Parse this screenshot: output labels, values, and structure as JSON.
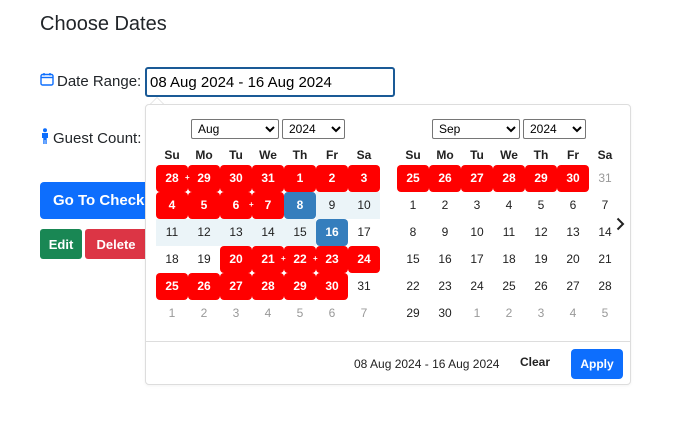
{
  "page": {
    "title": "Choose Dates"
  },
  "form": {
    "date_range_label": "Date Range:",
    "date_range_value": "08 Aug 2024 - 16 Aug 2024",
    "guest_count_label": "Guest Count:"
  },
  "buttons": {
    "checkout": "Go To Checko",
    "edit": "Edit",
    "delete": "Delete"
  },
  "icons": {
    "calendar": "calendar-icon",
    "person": "person-icon",
    "next": "chevron-right-icon"
  },
  "colors": {
    "booked": "#ff0000",
    "active": "#357ebd",
    "in_range": "#ebf4f8",
    "primary": "#0d6efd",
    "success": "#198754",
    "danger": "#dc3545"
  },
  "weekdays": [
    "Su",
    "Mo",
    "Tu",
    "We",
    "Th",
    "Fr",
    "Sa"
  ],
  "calendars": [
    {
      "month": "Aug",
      "year": "2024",
      "weeks": [
        [
          {
            "d": "28",
            "s": "booked"
          },
          {
            "d": "29",
            "s": "booked",
            "p": true
          },
          {
            "d": "30",
            "s": "booked"
          },
          {
            "d": "31",
            "s": "booked"
          },
          {
            "d": "1",
            "s": "booked"
          },
          {
            "d": "2",
            "s": "booked"
          },
          {
            "d": "3",
            "s": "booked"
          }
        ],
        [
          {
            "d": "4",
            "s": "booked"
          },
          {
            "d": "5",
            "s": "booked"
          },
          {
            "d": "6",
            "s": "booked"
          },
          {
            "d": "7",
            "s": "booked",
            "p": true
          },
          {
            "d": "8",
            "s": "active"
          },
          {
            "d": "9",
            "s": "inrange"
          },
          {
            "d": "10",
            "s": "inrange"
          }
        ],
        [
          {
            "d": "11",
            "s": "inrange"
          },
          {
            "d": "12",
            "s": "inrange"
          },
          {
            "d": "13",
            "s": "inrange"
          },
          {
            "d": "14",
            "s": "inrange"
          },
          {
            "d": "15",
            "s": "inrange"
          },
          {
            "d": "16",
            "s": "active"
          },
          {
            "d": "17",
            "s": ""
          }
        ],
        [
          {
            "d": "18",
            "s": ""
          },
          {
            "d": "19",
            "s": ""
          },
          {
            "d": "20",
            "s": "booked"
          },
          {
            "d": "21",
            "s": "booked"
          },
          {
            "d": "22",
            "s": "booked",
            "p": true
          },
          {
            "d": "23",
            "s": "booked",
            "p": true
          },
          {
            "d": "24",
            "s": "booked"
          }
        ],
        [
          {
            "d": "25",
            "s": "booked"
          },
          {
            "d": "26",
            "s": "booked"
          },
          {
            "d": "27",
            "s": "booked"
          },
          {
            "d": "28",
            "s": "booked"
          },
          {
            "d": "29",
            "s": "booked"
          },
          {
            "d": "30",
            "s": "booked"
          },
          {
            "d": "31",
            "s": ""
          }
        ],
        [
          {
            "d": "1",
            "s": "off"
          },
          {
            "d": "2",
            "s": "off"
          },
          {
            "d": "3",
            "s": "off"
          },
          {
            "d": "4",
            "s": "off"
          },
          {
            "d": "5",
            "s": "off"
          },
          {
            "d": "6",
            "s": "off"
          },
          {
            "d": "7",
            "s": "off"
          }
        ]
      ]
    },
    {
      "month": "Sep",
      "year": "2024",
      "weeks": [
        [
          {
            "d": "25",
            "s": "booked"
          },
          {
            "d": "26",
            "s": "booked"
          },
          {
            "d": "27",
            "s": "booked"
          },
          {
            "d": "28",
            "s": "booked"
          },
          {
            "d": "29",
            "s": "booked"
          },
          {
            "d": "30",
            "s": "booked"
          },
          {
            "d": "31",
            "s": "off"
          }
        ],
        [
          {
            "d": "1",
            "s": ""
          },
          {
            "d": "2",
            "s": ""
          },
          {
            "d": "3",
            "s": ""
          },
          {
            "d": "4",
            "s": ""
          },
          {
            "d": "5",
            "s": ""
          },
          {
            "d": "6",
            "s": ""
          },
          {
            "d": "7",
            "s": ""
          }
        ],
        [
          {
            "d": "8",
            "s": ""
          },
          {
            "d": "9",
            "s": ""
          },
          {
            "d": "10",
            "s": ""
          },
          {
            "d": "11",
            "s": ""
          },
          {
            "d": "12",
            "s": ""
          },
          {
            "d": "13",
            "s": ""
          },
          {
            "d": "14",
            "s": ""
          }
        ],
        [
          {
            "d": "15",
            "s": ""
          },
          {
            "d": "16",
            "s": ""
          },
          {
            "d": "17",
            "s": ""
          },
          {
            "d": "18",
            "s": ""
          },
          {
            "d": "19",
            "s": ""
          },
          {
            "d": "20",
            "s": ""
          },
          {
            "d": "21",
            "s": ""
          }
        ],
        [
          {
            "d": "22",
            "s": ""
          },
          {
            "d": "23",
            "s": ""
          },
          {
            "d": "24",
            "s": ""
          },
          {
            "d": "25",
            "s": ""
          },
          {
            "d": "26",
            "s": ""
          },
          {
            "d": "27",
            "s": ""
          },
          {
            "d": "28",
            "s": ""
          }
        ],
        [
          {
            "d": "29",
            "s": ""
          },
          {
            "d": "30",
            "s": ""
          },
          {
            "d": "1",
            "s": "off"
          },
          {
            "d": "2",
            "s": "off"
          },
          {
            "d": "3",
            "s": "off"
          },
          {
            "d": "4",
            "s": "off"
          },
          {
            "d": "5",
            "s": "off"
          }
        ]
      ]
    }
  ],
  "footer": {
    "selected_range": "08 Aug 2024 - 16 Aug 2024",
    "clear": "Clear",
    "apply": "Apply"
  }
}
